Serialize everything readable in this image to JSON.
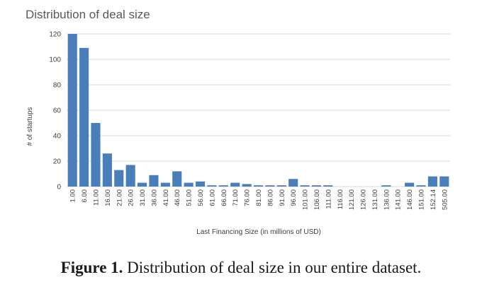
{
  "chart_data": {
    "type": "bar",
    "title": "Distribution of deal size",
    "xlabel": "Last Financing Size (in millions of USD)",
    "ylabel": "# of startups",
    "ylim": [
      0,
      120
    ],
    "yticks": [
      0,
      20,
      40,
      60,
      80,
      100,
      120
    ],
    "grid": true,
    "categories": [
      "1.00",
      "6.00",
      "11.00",
      "16.00",
      "21.00",
      "26.00",
      "31.00",
      "36.00",
      "41.00",
      "46.00",
      "51.00",
      "56.00",
      "61.00",
      "66.00",
      "71.00",
      "76.00",
      "81.00",
      "86.00",
      "91.00",
      "96.00",
      "101.00",
      "106.00",
      "111.00",
      "116.00",
      "121.00",
      "126.00",
      "131.00",
      "136.00",
      "141.00",
      "146.00",
      "151.00",
      "152.14",
      "505.00"
    ],
    "values": [
      120,
      109,
      50,
      26,
      13,
      17,
      3,
      9,
      3,
      12,
      3,
      4,
      1,
      1,
      3,
      2,
      1,
      1,
      1,
      6,
      1,
      1,
      1,
      0,
      0,
      0,
      0,
      1,
      0,
      3,
      1,
      8,
      8
    ]
  },
  "caption": {
    "label": "Figure 1.",
    "text": " Distribution of deal size in our entire dataset."
  }
}
